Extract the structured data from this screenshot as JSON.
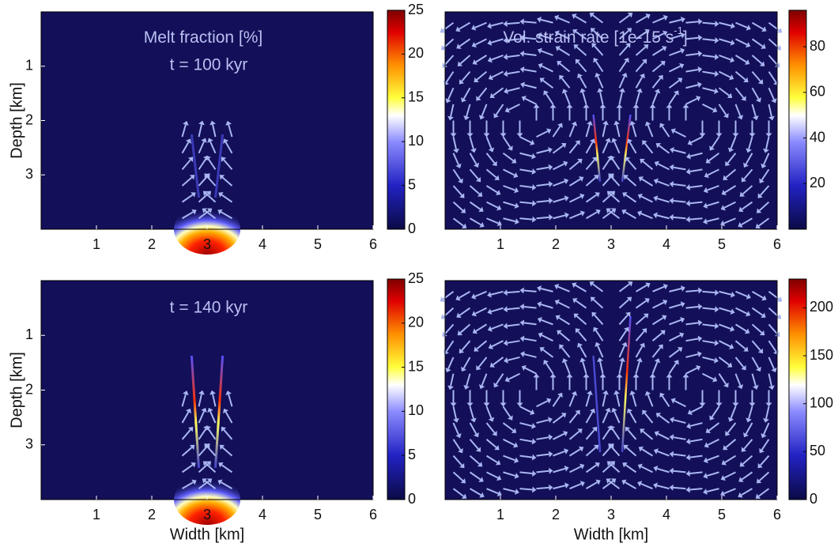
{
  "chart_data": [
    {
      "type": "heatmap",
      "title": "Melt fraction [%]",
      "subtitle": "t = 100 kyr",
      "ylabel": "Depth [km]",
      "xlim": [
        0,
        6
      ],
      "xticks": [
        1,
        2,
        3,
        4,
        5,
        6
      ],
      "ylim": [
        4,
        0
      ],
      "yticks": [
        1,
        2,
        3
      ],
      "clim": [
        0,
        25
      ],
      "cticks": [
        0,
        5,
        10,
        15,
        20,
        25
      ]
    },
    {
      "type": "heatmap",
      "title": "Vol. strain rate [1e-15 s",
      "title_superscript": "-1",
      "title_suffix": "]",
      "xlim": [
        0,
        6
      ],
      "xticks": [
        1,
        2,
        3,
        4,
        5,
        6
      ],
      "ylim": [
        4,
        0
      ],
      "clim": [
        0,
        96
      ],
      "cticks": [
        20,
        40,
        60,
        80
      ]
    },
    {
      "type": "heatmap",
      "subtitle": "t = 140 kyr",
      "xlabel": "Width [km]",
      "ylabel": "Depth [km]",
      "xlim": [
        0,
        6
      ],
      "xticks": [
        1,
        2,
        3,
        4,
        5,
        6
      ],
      "ylim": [
        4,
        0
      ],
      "yticks": [
        1,
        2,
        3
      ],
      "clim": [
        0,
        25
      ],
      "cticks": [
        0,
        5,
        10,
        15,
        20,
        25
      ]
    },
    {
      "type": "heatmap",
      "xlabel": "Width [km]",
      "xlim": [
        0,
        6
      ],
      "xticks": [
        1,
        2,
        3,
        4,
        5,
        6
      ],
      "ylim": [
        4,
        0
      ],
      "clim": [
        0,
        230
      ],
      "cticks": [
        0,
        50,
        100,
        150,
        200
      ]
    }
  ]
}
